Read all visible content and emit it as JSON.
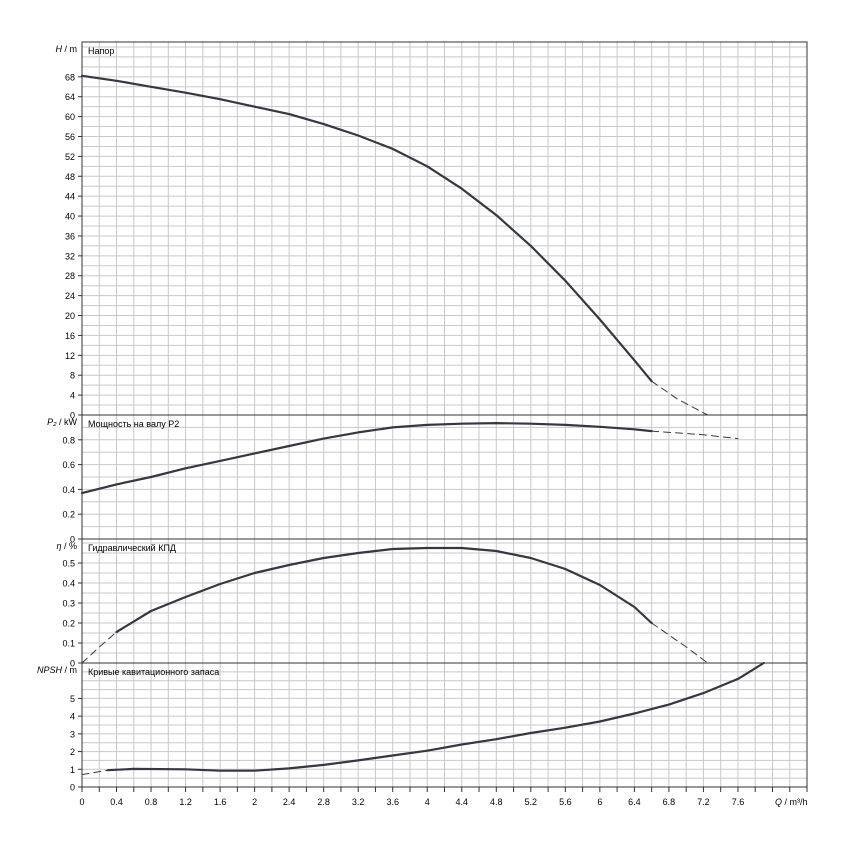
{
  "chart_data": [
    {
      "type": "line",
      "ylabel_symbol": "H",
      "ylabel_unit": " / m",
      "title": "Напор",
      "ylim": [
        0,
        75
      ],
      "yticks": [
        0,
        4,
        8,
        12,
        16,
        20,
        24,
        28,
        32,
        36,
        40,
        44,
        48,
        52,
        56,
        60,
        64,
        68
      ],
      "series": [
        {
          "style": "solid",
          "points": [
            [
              0,
              68.2
            ],
            [
              0.4,
              67.2
            ],
            [
              0.8,
              66
            ],
            [
              1.2,
              64.8
            ],
            [
              1.6,
              63.5
            ],
            [
              2.0,
              62
            ],
            [
              2.4,
              60.5
            ],
            [
              2.8,
              58.5
            ],
            [
              3.2,
              56.2
            ],
            [
              3.6,
              53.5
            ],
            [
              4.0,
              50
            ],
            [
              4.4,
              45.5
            ],
            [
              4.8,
              40.2
            ],
            [
              5.2,
              34
            ],
            [
              5.6,
              27
            ],
            [
              6.0,
              19.2
            ],
            [
              6.4,
              11
            ],
            [
              6.6,
              6.8
            ]
          ]
        },
        {
          "style": "dashed",
          "points": [
            [
              6.6,
              6.8
            ],
            [
              6.9,
              3.2
            ],
            [
              7.25,
              0
            ]
          ]
        }
      ]
    },
    {
      "type": "line",
      "ylabel_symbol": "P₂",
      "ylabel_unit": " / kW",
      "title": "Мощность на валу P2",
      "ylim": [
        0,
        1.0
      ],
      "yticks": [
        0,
        0.2,
        0.4,
        0.6,
        0.8
      ],
      "series": [
        {
          "style": "solid",
          "points": [
            [
              0,
              0.37
            ],
            [
              0.4,
              0.44
            ],
            [
              0.8,
              0.5
            ],
            [
              1.2,
              0.57
            ],
            [
              1.6,
              0.63
            ],
            [
              2.0,
              0.69
            ],
            [
              2.4,
              0.75
            ],
            [
              2.8,
              0.81
            ],
            [
              3.2,
              0.86
            ],
            [
              3.6,
              0.9
            ],
            [
              4.0,
              0.92
            ],
            [
              4.4,
              0.93
            ],
            [
              4.8,
              0.935
            ],
            [
              5.2,
              0.93
            ],
            [
              5.6,
              0.92
            ],
            [
              6.0,
              0.905
            ],
            [
              6.4,
              0.885
            ],
            [
              6.6,
              0.87
            ]
          ]
        },
        {
          "style": "dashed",
          "points": [
            [
              6.6,
              0.87
            ],
            [
              7.2,
              0.84
            ],
            [
              7.6,
              0.81
            ]
          ]
        }
      ]
    },
    {
      "type": "line",
      "ylabel_symbol": "η",
      "ylabel_unit": " / %",
      "title": "Гидравлический КПД",
      "ylim": [
        0,
        0.62
      ],
      "yticks": [
        0,
        0.1,
        0.2,
        0.3,
        0.4,
        0.5
      ],
      "series": [
        {
          "style": "dashed",
          "points": [
            [
              0,
              0
            ],
            [
              0.2,
              0.08
            ],
            [
              0.4,
              0.155
            ]
          ]
        },
        {
          "style": "solid",
          "points": [
            [
              0.4,
              0.155
            ],
            [
              0.8,
              0.26
            ],
            [
              1.2,
              0.33
            ],
            [
              1.6,
              0.395
            ],
            [
              2.0,
              0.45
            ],
            [
              2.4,
              0.49
            ],
            [
              2.8,
              0.525
            ],
            [
              3.2,
              0.55
            ],
            [
              3.6,
              0.57
            ],
            [
              4.0,
              0.575
            ],
            [
              4.4,
              0.575
            ],
            [
              4.8,
              0.56
            ],
            [
              5.2,
              0.525
            ],
            [
              5.6,
              0.47
            ],
            [
              6.0,
              0.39
            ],
            [
              6.4,
              0.28
            ],
            [
              6.6,
              0.2
            ]
          ]
        },
        {
          "style": "dashed",
          "points": [
            [
              6.6,
              0.2
            ],
            [
              7.0,
              0.08
            ],
            [
              7.25,
              0
            ]
          ]
        }
      ]
    },
    {
      "type": "line",
      "ylabel_symbol": "NPSH",
      "ylabel_unit": " / m",
      "title": "Кривые кавитационного запаса",
      "ylim": [
        0,
        7
      ],
      "yticks": [
        0,
        1,
        2,
        3,
        4,
        5
      ],
      "series": [
        {
          "style": "dashed",
          "points": [
            [
              0,
              0.7
            ],
            [
              0.3,
              0.95
            ]
          ]
        },
        {
          "style": "solid",
          "points": [
            [
              0.3,
              0.95
            ],
            [
              0.6,
              1.02
            ],
            [
              1.2,
              1.0
            ],
            [
              1.6,
              0.92
            ],
            [
              2.0,
              0.92
            ],
            [
              2.4,
              1.05
            ],
            [
              2.8,
              1.25
            ],
            [
              3.2,
              1.5
            ],
            [
              3.6,
              1.78
            ],
            [
              4.0,
              2.05
            ],
            [
              4.4,
              2.4
            ],
            [
              4.8,
              2.7
            ],
            [
              5.2,
              3.05
            ],
            [
              5.6,
              3.35
            ],
            [
              6.0,
              3.7
            ],
            [
              6.4,
              4.15
            ],
            [
              6.8,
              4.65
            ],
            [
              7.2,
              5.3
            ],
            [
              7.6,
              6.1
            ],
            [
              7.9,
              7.0
            ]
          ]
        }
      ]
    }
  ],
  "x_axis": {
    "xlim": [
      0,
      8.4
    ],
    "ticks": [
      "0",
      "0.4",
      "0.8",
      "1.2",
      "1.6",
      "2",
      "2.4",
      "2.8",
      "3.2",
      "3.6",
      "4",
      "4.4",
      "4.8",
      "5.2",
      "5.6",
      "6",
      "6.4",
      "6.8",
      "7.2",
      "7.6"
    ],
    "label_symbol": "Q",
    "label_unit": " / m³/h"
  },
  "colors": {
    "curve": "#333842",
    "grid": "#c8c8c8",
    "frame": "#333333",
    "text": "#000000"
  }
}
